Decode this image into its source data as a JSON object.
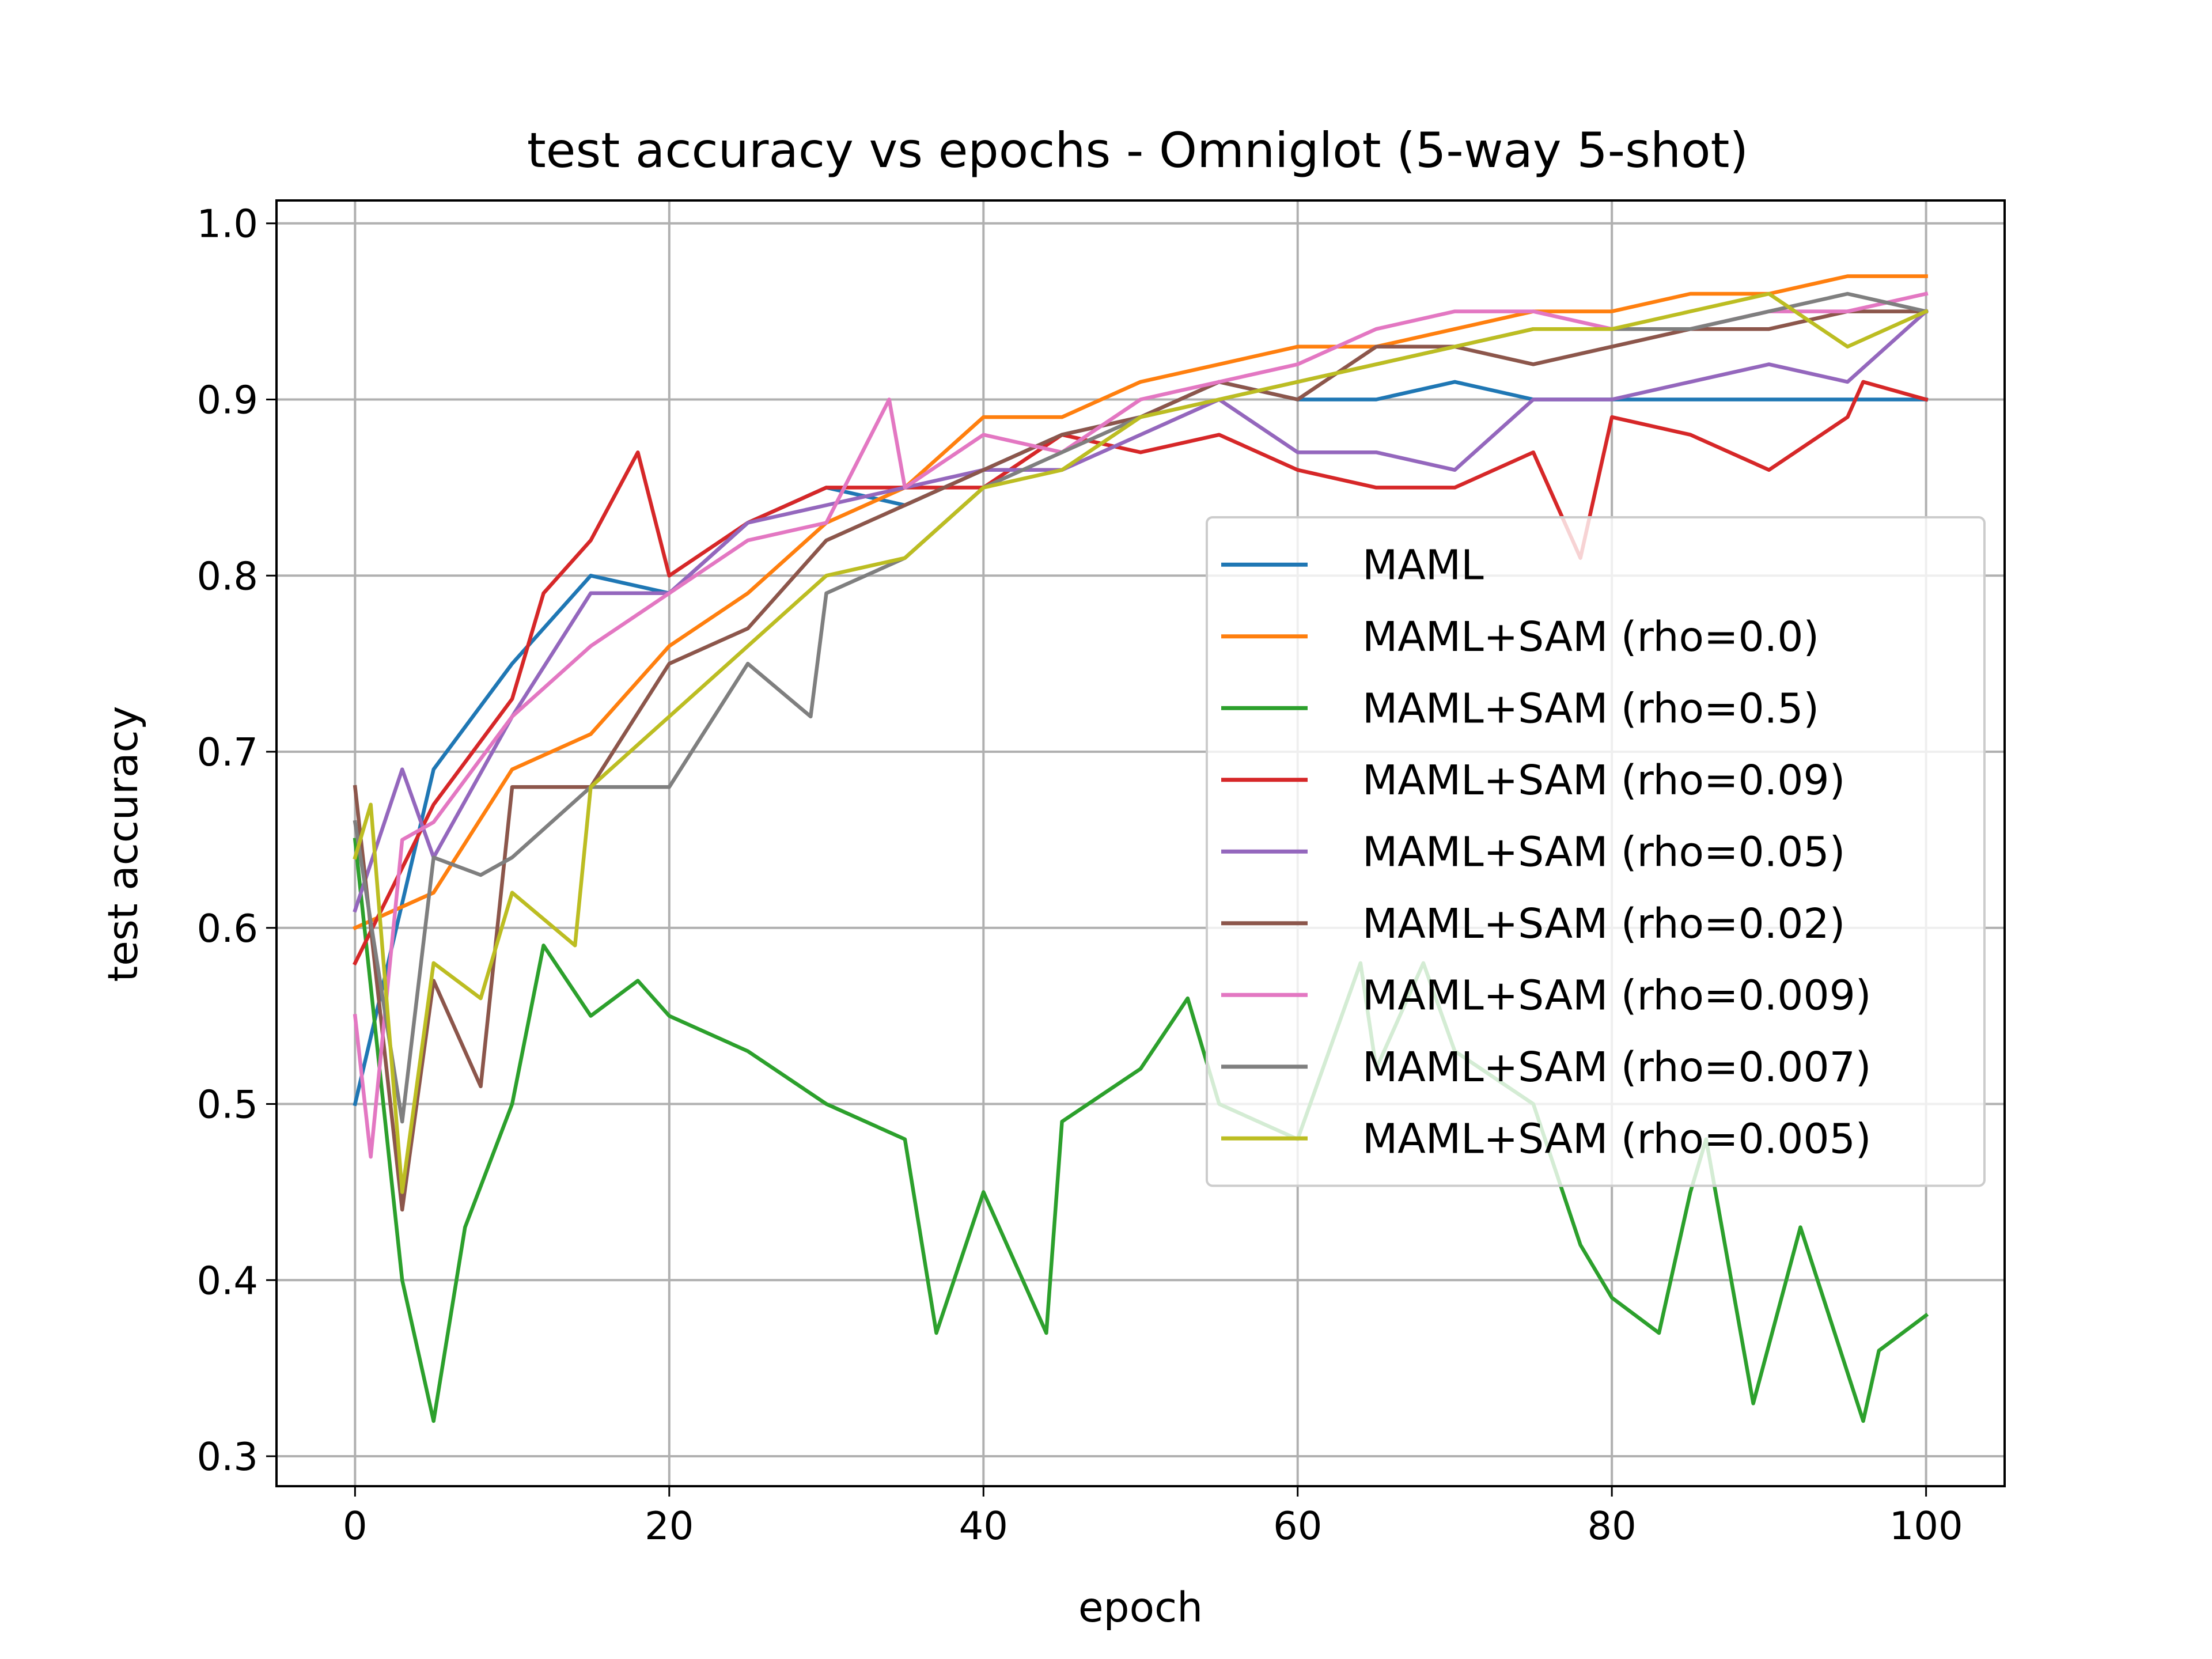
{
  "chart_data": {
    "type": "line",
    "title": "test accuracy vs epochs - Omniglot (5-way 5-shot)",
    "xlabel": "epoch",
    "ylabel": "test accuracy",
    "xlim": [
      -5,
      105
    ],
    "ylim": [
      0.283,
      1.013
    ],
    "xticks": [
      0,
      20,
      40,
      60,
      80,
      100
    ],
    "xtick_labels": [
      "0",
      "20",
      "40",
      "60",
      "80",
      "100"
    ],
    "yticks": [
      0.3,
      0.4,
      0.5,
      0.6,
      0.7,
      0.8,
      0.9,
      1.0
    ],
    "ytick_labels": [
      "0.3",
      "0.4",
      "0.5",
      "0.6",
      "0.7",
      "0.8",
      "0.9",
      "1.0"
    ],
    "grid": true,
    "legend_position": "center-right",
    "series": [
      {
        "name": "MAML",
        "color": "#1f77b4",
        "x": [
          0,
          5,
          10,
          15,
          20,
          25,
          30,
          35,
          40,
          45,
          50,
          55,
          60,
          65,
          70,
          75,
          80,
          85,
          90,
          95,
          100
        ],
        "y": [
          0.5,
          0.69,
          0.75,
          0.8,
          0.79,
          0.83,
          0.85,
          0.84,
          0.86,
          0.88,
          0.89,
          0.91,
          0.9,
          0.9,
          0.91,
          0.9,
          0.9,
          0.9,
          0.9,
          0.9,
          0.9
        ]
      },
      {
        "name": "MAML+SAM (rho=0.0)",
        "color": "#ff7f0e",
        "x": [
          0,
          5,
          10,
          15,
          20,
          25,
          30,
          35,
          40,
          45,
          50,
          55,
          60,
          65,
          70,
          75,
          80,
          85,
          90,
          95,
          100
        ],
        "y": [
          0.6,
          0.62,
          0.69,
          0.71,
          0.76,
          0.79,
          0.83,
          0.85,
          0.89,
          0.89,
          0.91,
          0.92,
          0.93,
          0.93,
          0.94,
          0.95,
          0.95,
          0.96,
          0.96,
          0.97,
          0.97
        ]
      },
      {
        "name": "MAML+SAM (rho=0.5)",
        "color": "#2ca02c",
        "x": [
          0,
          3,
          5,
          7,
          10,
          12,
          15,
          18,
          20,
          25,
          30,
          35,
          37,
          40,
          44,
          45,
          50,
          53,
          55,
          60,
          64,
          65,
          68,
          70,
          75,
          78,
          80,
          83,
          85,
          86,
          89,
          92,
          96,
          97,
          100
        ],
        "y": [
          0.65,
          0.4,
          0.32,
          0.43,
          0.5,
          0.59,
          0.55,
          0.57,
          0.55,
          0.53,
          0.5,
          0.48,
          0.37,
          0.45,
          0.37,
          0.49,
          0.52,
          0.56,
          0.5,
          0.48,
          0.58,
          0.52,
          0.58,
          0.53,
          0.5,
          0.42,
          0.39,
          0.37,
          0.45,
          0.48,
          0.33,
          0.43,
          0.32,
          0.36,
          0.38
        ]
      },
      {
        "name": "MAML+SAM (rho=0.09)",
        "color": "#d62728",
        "x": [
          0,
          5,
          10,
          12,
          15,
          18,
          20,
          25,
          30,
          35,
          40,
          45,
          50,
          55,
          60,
          65,
          70,
          75,
          78,
          80,
          85,
          90,
          95,
          96,
          100
        ],
        "y": [
          0.58,
          0.67,
          0.73,
          0.79,
          0.82,
          0.87,
          0.8,
          0.83,
          0.85,
          0.85,
          0.85,
          0.88,
          0.87,
          0.88,
          0.86,
          0.85,
          0.85,
          0.87,
          0.81,
          0.89,
          0.88,
          0.86,
          0.89,
          0.91,
          0.9
        ]
      },
      {
        "name": "MAML+SAM (rho=0.05)",
        "color": "#9467bd",
        "x": [
          0,
          3,
          5,
          10,
          15,
          20,
          25,
          30,
          35,
          40,
          45,
          50,
          55,
          60,
          65,
          70,
          75,
          80,
          85,
          90,
          95,
          100
        ],
        "y": [
          0.61,
          0.69,
          0.64,
          0.72,
          0.79,
          0.79,
          0.83,
          0.84,
          0.85,
          0.86,
          0.86,
          0.88,
          0.9,
          0.87,
          0.87,
          0.86,
          0.9,
          0.9,
          0.91,
          0.92,
          0.91,
          0.95
        ]
      },
      {
        "name": "MAML+SAM (rho=0.02)",
        "color": "#8c564b",
        "x": [
          0,
          3,
          5,
          8,
          10,
          15,
          20,
          25,
          30,
          35,
          40,
          45,
          50,
          55,
          60,
          65,
          70,
          75,
          80,
          85,
          90,
          95,
          100
        ],
        "y": [
          0.68,
          0.44,
          0.57,
          0.51,
          0.68,
          0.68,
          0.75,
          0.77,
          0.82,
          0.84,
          0.86,
          0.88,
          0.89,
          0.91,
          0.9,
          0.93,
          0.93,
          0.92,
          0.93,
          0.94,
          0.94,
          0.95,
          0.95
        ]
      },
      {
        "name": "MAML+SAM (rho=0.009)",
        "color": "#e377c2",
        "x": [
          0,
          1,
          3,
          5,
          10,
          15,
          20,
          25,
          30,
          34,
          35,
          40,
          45,
          50,
          55,
          60,
          65,
          70,
          75,
          80,
          85,
          90,
          95,
          100
        ],
        "y": [
          0.55,
          0.47,
          0.65,
          0.66,
          0.72,
          0.76,
          0.79,
          0.82,
          0.83,
          0.9,
          0.85,
          0.88,
          0.87,
          0.9,
          0.91,
          0.92,
          0.94,
          0.95,
          0.95,
          0.94,
          0.94,
          0.95,
          0.95,
          0.96
        ]
      },
      {
        "name": "MAML+SAM (rho=0.007)",
        "color": "#7f7f7f",
        "x": [
          0,
          3,
          5,
          8,
          10,
          15,
          20,
          25,
          29,
          30,
          35,
          40,
          45,
          50,
          55,
          60,
          65,
          70,
          75,
          80,
          85,
          90,
          95,
          100
        ],
        "y": [
          0.66,
          0.49,
          0.64,
          0.63,
          0.64,
          0.68,
          0.68,
          0.75,
          0.72,
          0.79,
          0.81,
          0.85,
          0.87,
          0.89,
          0.9,
          0.91,
          0.92,
          0.93,
          0.94,
          0.94,
          0.94,
          0.95,
          0.96,
          0.95
        ]
      },
      {
        "name": "MAML+SAM (rho=0.005)",
        "color": "#bcbd22",
        "x": [
          0,
          1,
          3,
          5,
          8,
          10,
          14,
          15,
          20,
          25,
          30,
          35,
          40,
          45,
          50,
          55,
          60,
          65,
          70,
          75,
          80,
          85,
          90,
          95,
          100
        ],
        "y": [
          0.64,
          0.67,
          0.45,
          0.58,
          0.56,
          0.62,
          0.59,
          0.68,
          0.72,
          0.76,
          0.8,
          0.81,
          0.85,
          0.86,
          0.89,
          0.9,
          0.91,
          0.92,
          0.93,
          0.94,
          0.94,
          0.95,
          0.96,
          0.93,
          0.95
        ]
      }
    ]
  }
}
